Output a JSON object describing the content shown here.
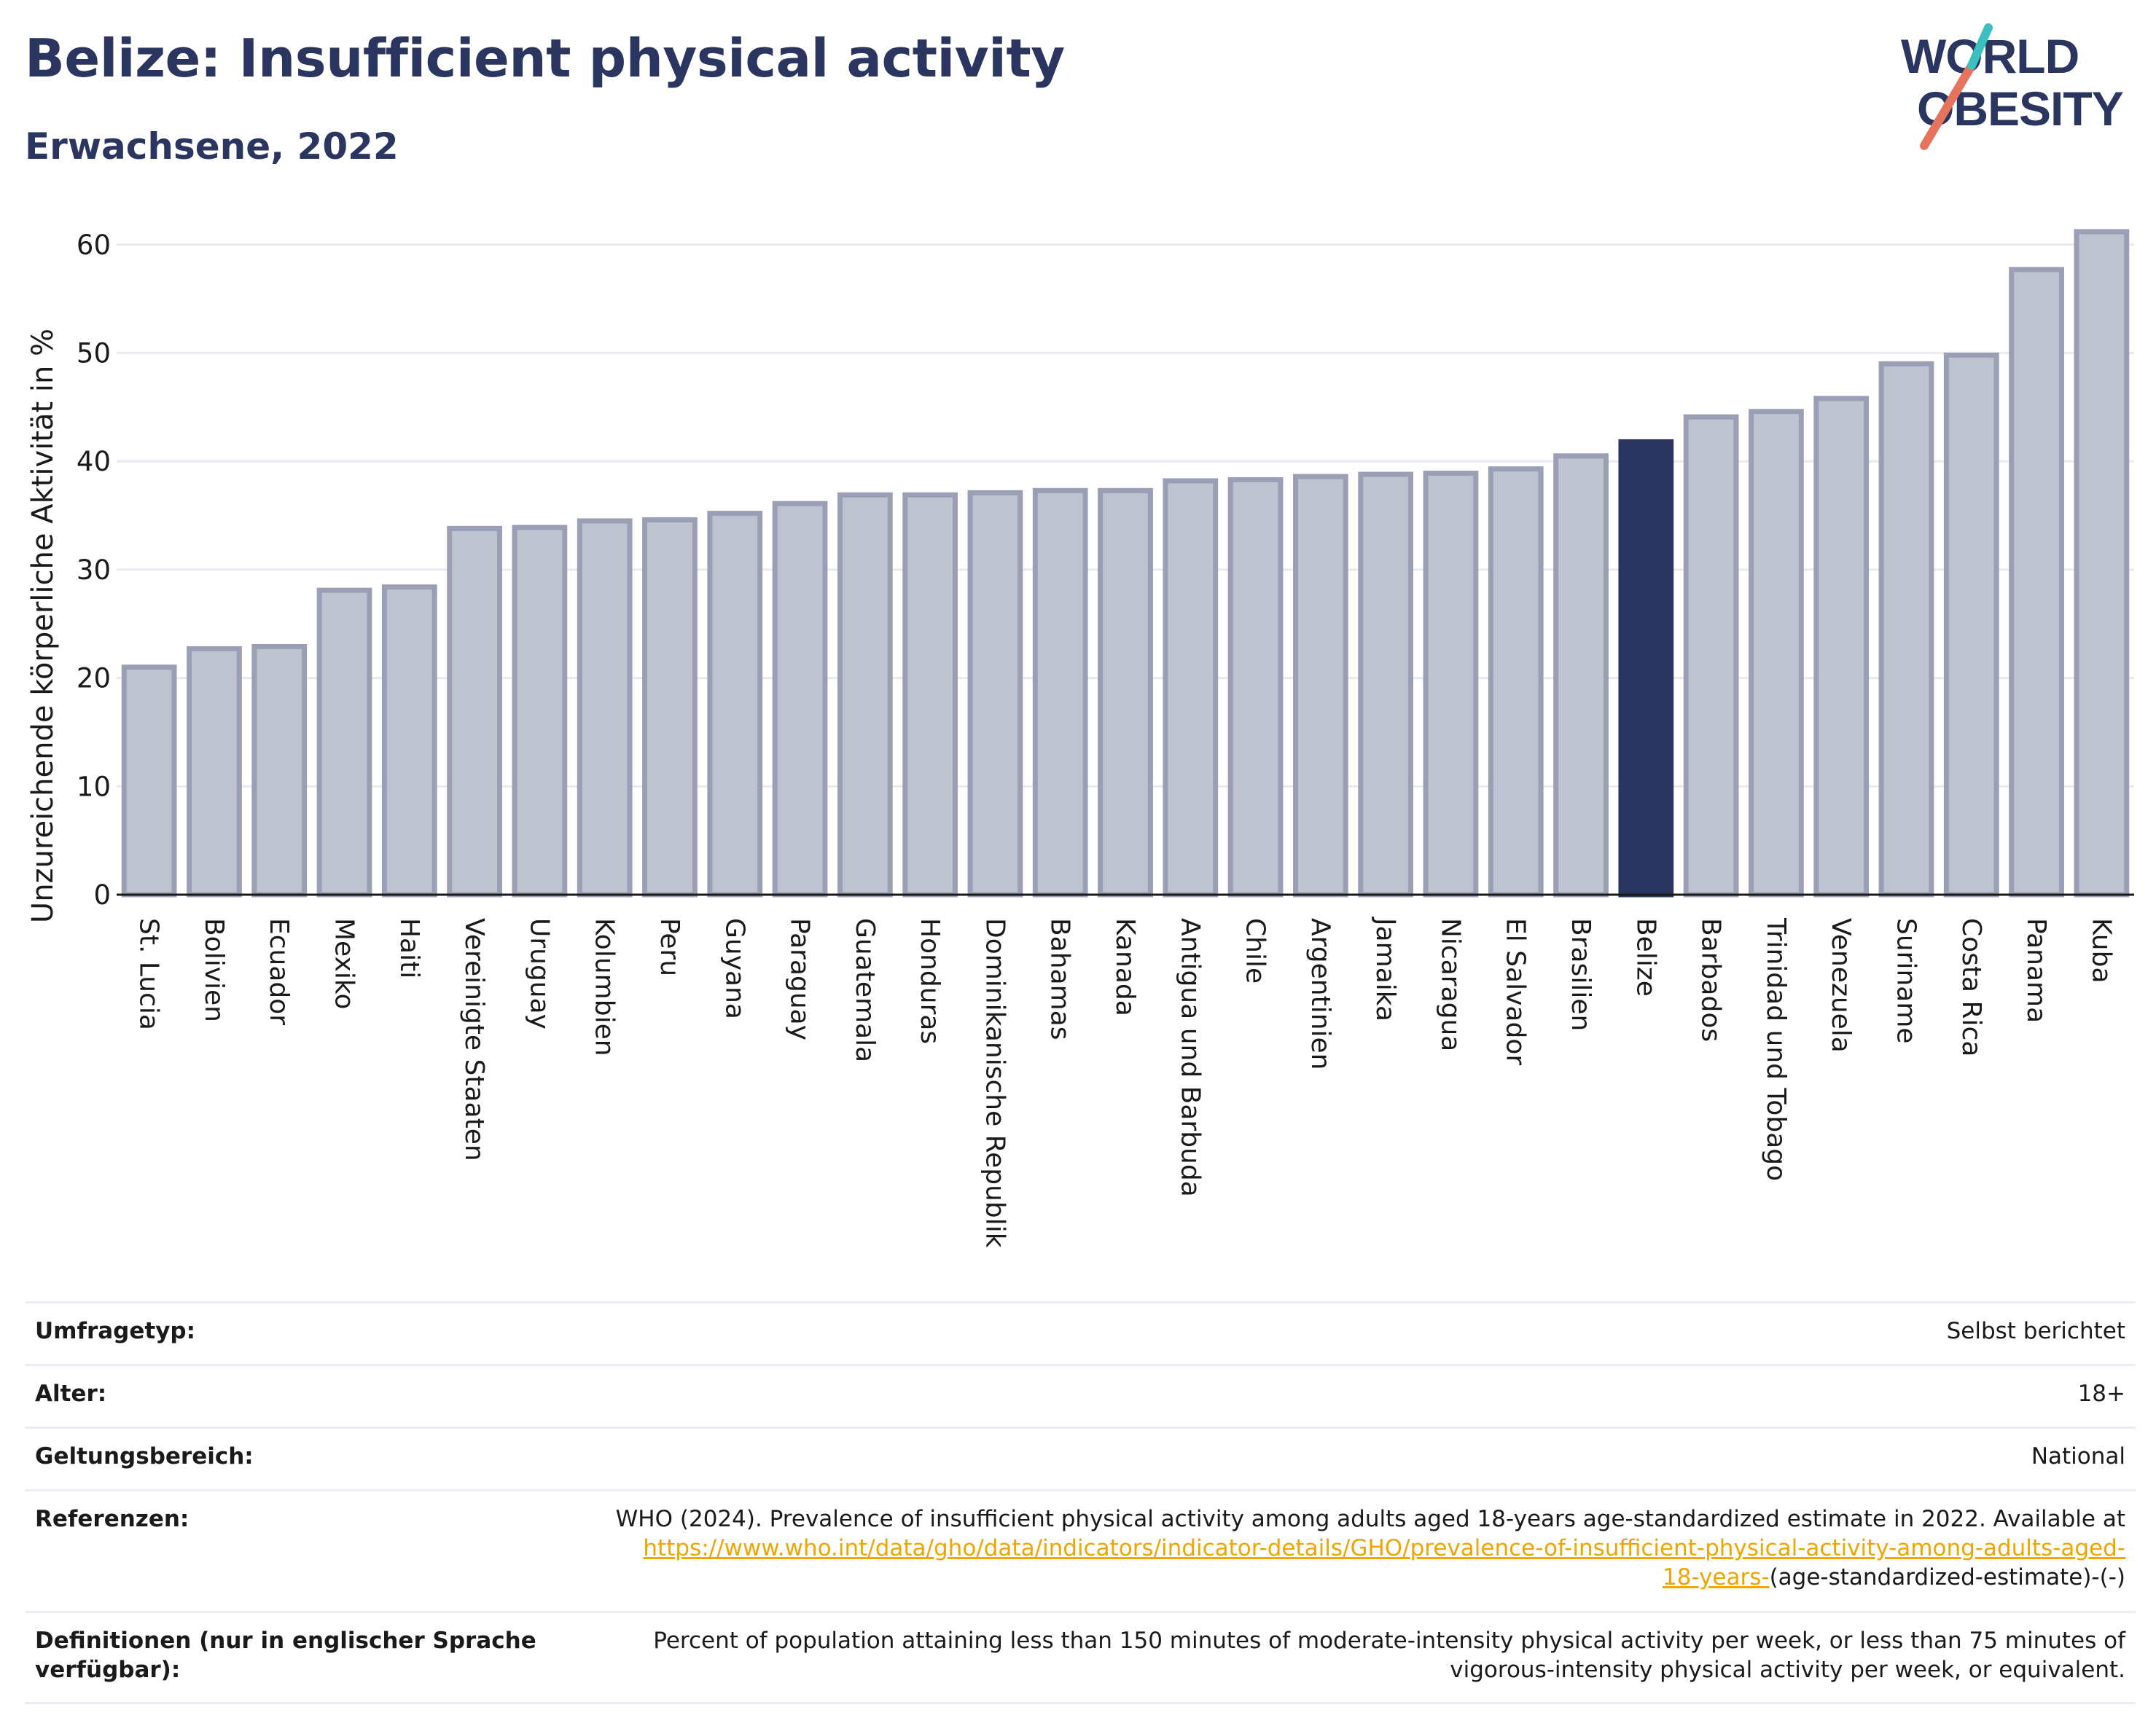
{
  "header": {
    "title": "Belize: Insufficient physical activity",
    "subtitle": "Erwachsene, 2022"
  },
  "logo": {
    "line1": "WORLD",
    "line2": "OBESITY",
    "text_color": "#2a3560",
    "slash_colors": [
      "#e5735e",
      "#3bbfbf"
    ]
  },
  "chart_data": {
    "type": "bar",
    "title": "",
    "xlabel": "",
    "ylabel": "Unzureichende körperliche Aktivität in %",
    "ylim": [
      0,
      63
    ],
    "yticks": [
      0,
      10,
      20,
      30,
      40,
      50,
      60
    ],
    "grid": true,
    "categories": [
      "St. Lucia",
      "Bolivien",
      "Ecuador",
      "Mexiko",
      "Haiti",
      "Vereinigte Staaten",
      "Uruguay",
      "Kolumbien",
      "Peru",
      "Guyana",
      "Paraguay",
      "Guatemala",
      "Honduras",
      "Dominikanische Republik",
      "Bahamas",
      "Kanada",
      "Antigua und Barbuda",
      "Chile",
      "Argentinien",
      "Jamaika",
      "Nicaragua",
      "El Salvador",
      "Brasilien",
      "Belize",
      "Barbados",
      "Trinidad und Tobago",
      "Venezuela",
      "Suriname",
      "Costa Rica",
      "Panama",
      "Kuba"
    ],
    "values": [
      21.0,
      22.7,
      22.9,
      28.1,
      28.4,
      33.8,
      33.9,
      34.5,
      34.6,
      35.2,
      36.1,
      36.9,
      36.9,
      37.1,
      37.3,
      37.3,
      38.2,
      38.3,
      38.6,
      38.8,
      38.9,
      39.3,
      40.5,
      41.8,
      44.1,
      44.6,
      45.8,
      49.0,
      49.8,
      57.7,
      61.2
    ],
    "highlight": "Belize",
    "colors": {
      "bar_fill": "#bfc2cf",
      "bar_edge": "#9a9fb5",
      "highlight_fill": "#2a3560",
      "grid": "#e8eaf0",
      "axis": "#1a1a1a"
    }
  },
  "meta": {
    "survey_label": "Umfragetyp:",
    "survey_value": "Selbst berichtet",
    "age_label": "Alter:",
    "age_value": "18+",
    "scope_label": "Geltungsbereich:",
    "scope_value": "National",
    "refs_label": "Referenzen:",
    "refs_text": "WHO (2024). Prevalence of insufficient physical activity among adults aged 18-years age-standardized estimate in 2022. Available at",
    "refs_link_1": "https://www.who.int/data/gho/data/indicators/indicator-details/GHO/prevalence-of-insufficient-physical-activity-among-adults-aged-",
    "refs_link_2": "18-years-",
    "refs_suffix": "(age-standardized-estimate)-(-)",
    "defs_label_1": "Definitionen (nur in englischer Sprache",
    "defs_label_2": "verfügbar):",
    "defs_text_1": "Percent of population attaining less than 150 minutes of moderate-intensity physical activity per week, or less than 75 minutes of",
    "defs_text_2": "vigorous-intensity physical activity per week, or equivalent."
  }
}
